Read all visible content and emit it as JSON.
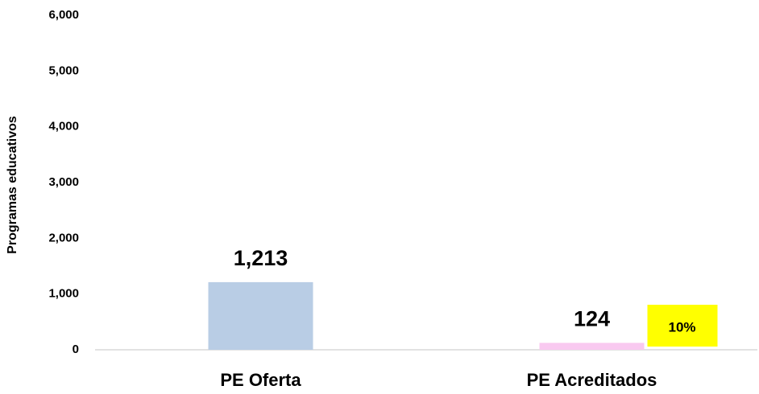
{
  "chart_data": {
    "type": "bar",
    "ylabel": "Programas educativos",
    "categories": [
      "PE Oferta",
      "PE Acreditados"
    ],
    "values": [
      1213,
      124
    ],
    "value_labels": [
      "1,213",
      "124"
    ],
    "colors": [
      "#b9cde5",
      "#f9c9f0"
    ],
    "ylim": [
      0,
      6000
    ],
    "yticks": [
      0,
      {
        "value": 1000,
        "label": "1,000"
      },
      {
        "value": 2000,
        "label": "2,000"
      },
      {
        "value": 3000,
        "label": "3,000"
      },
      {
        "value": 4000,
        "label": "4,000"
      },
      {
        "value": 5000,
        "label": "5,000"
      },
      {
        "value": 6000,
        "label": "6,000"
      }
    ],
    "grid": false,
    "annotations": [
      {
        "text": "10%",
        "color": "#ffff00"
      }
    ]
  }
}
